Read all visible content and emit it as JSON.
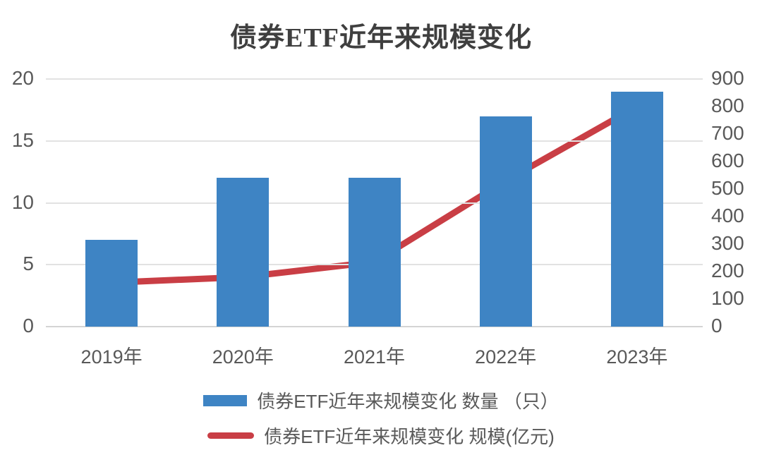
{
  "chart_data": {
    "type": "combo",
    "title": "债券ETF近年来规模变化",
    "categories": [
      "2019年",
      "2020年",
      "2021年",
      "2022年",
      "2023年"
    ],
    "series": [
      {
        "name": "债券ETF近年来规模变化 数量 （只）",
        "type": "bar",
        "axis": "left",
        "color": "#3e84c4",
        "values": [
          7,
          12,
          12,
          17,
          19
        ]
      },
      {
        "name": "债券ETF近年来规模变化 规模(亿元)",
        "type": "line",
        "axis": "right",
        "color": "#c93e45",
        "values": [
          160,
          180,
          235,
          530,
          800
        ]
      }
    ],
    "left_axis": {
      "min": 0,
      "max": 20,
      "ticks": [
        0,
        5,
        10,
        15,
        20
      ]
    },
    "right_axis": {
      "min": 0,
      "max": 900,
      "ticks": [
        0,
        100,
        200,
        300,
        400,
        500,
        600,
        700,
        800,
        900
      ]
    },
    "grid": true,
    "legend_position": "bottom",
    "colors": {
      "bar": "#3e84c4",
      "line": "#c93e45",
      "gridline": "#e2e2e2",
      "axis_text": "#595959",
      "title_text": "#3f3f3f",
      "background": "#ffffff"
    }
  }
}
